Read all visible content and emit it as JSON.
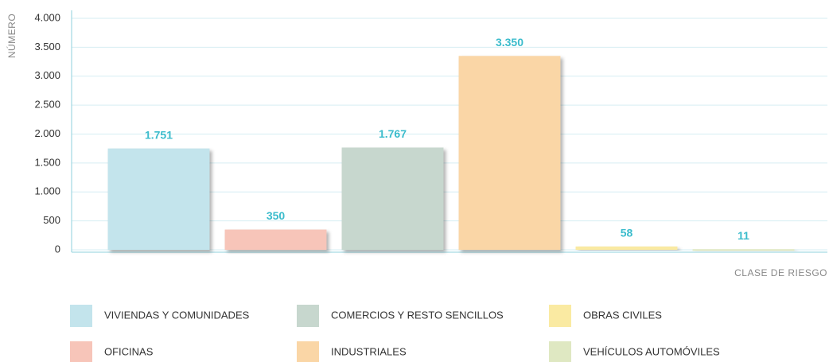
{
  "chart_data": {
    "type": "bar",
    "y_axis_label": "NÚMERO",
    "x_axis_label": "CLASE DE RIESGO",
    "categories": [
      "VIVIENDAS Y COMUNIDADES",
      "OFICINAS",
      "COMERCIOS Y RESTO SENCILLOS",
      "INDUSTRIALES",
      "OBRAS CIVILES",
      "VEHÍCULOS AUTOMÓVILES"
    ],
    "values": [
      1751,
      350,
      1767,
      3350,
      58,
      11
    ],
    "value_labels": [
      "1.751",
      "350",
      "1.767",
      "3.350",
      "58",
      "11"
    ],
    "colors": [
      "#c3e4ec",
      "#f7c5b9",
      "#c7d7ce",
      "#fad6a6",
      "#faeaa2",
      "#dfe8c2"
    ],
    "ylim": [
      0,
      4000
    ],
    "yticks": [
      0,
      500,
      {
        "value": 1000,
        "label": "1.000"
      },
      {
        "value": 1500,
        "label": "1.500"
      },
      {
        "value": 2000,
        "label": "2.000"
      },
      {
        "value": 2500,
        "label": "2.500"
      },
      {
        "value": 3000,
        "label": "3.000"
      },
      {
        "value": 3500,
        "label": "3.500"
      },
      {
        "value": 4000,
        "label": "4.000"
      }
    ],
    "grid": true
  }
}
